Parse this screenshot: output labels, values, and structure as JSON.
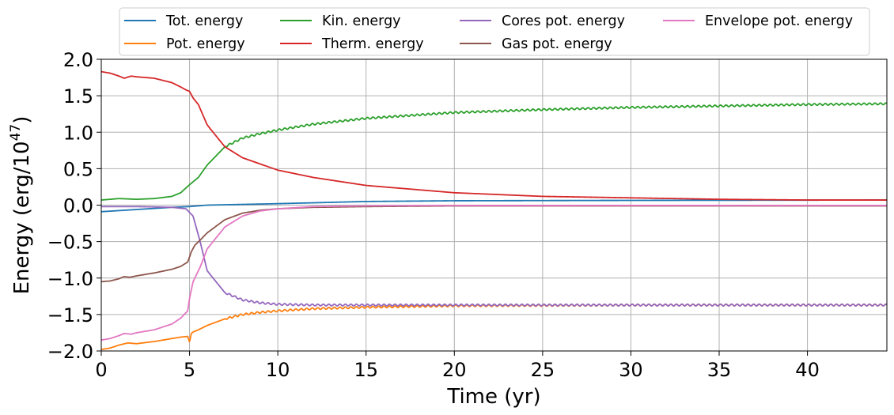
{
  "chart_data": {
    "type": "line",
    "title": "",
    "xlabel": "Time (yr)",
    "ylabel_prefix": "Energy (erg/10",
    "ylabel_exponent": "47",
    "ylabel_suffix": ")",
    "xlim": [
      0,
      44.5
    ],
    "ylim": [
      -2.0,
      2.0
    ],
    "grid": true,
    "legend_position": "top-center, above plot",
    "x_ticks": [
      0,
      5,
      10,
      15,
      20,
      25,
      30,
      35,
      40
    ],
    "x_tick_labels": [
      "0",
      "5",
      "10",
      "15",
      "20",
      "25",
      "30",
      "35",
      "40"
    ],
    "y_ticks": [
      -2.0,
      -1.5,
      -1.0,
      -0.5,
      0.0,
      0.5,
      1.0,
      1.5,
      2.0
    ],
    "y_tick_labels": [
      "−2.0",
      "−1.5",
      "−1.0",
      "−0.5",
      "0.0",
      "0.5",
      "1.0",
      "1.5",
      "2.0"
    ],
    "series": [
      {
        "name": "Tot. energy",
        "color": "#1f77b4",
        "x": [
          0,
          2,
          4,
          5,
          6,
          8,
          10,
          15,
          20,
          30,
          44.5
        ],
        "y": [
          -0.09,
          -0.06,
          -0.03,
          -0.02,
          0.0,
          0.01,
          0.02,
          0.05,
          0.06,
          0.065,
          0.07
        ],
        "oscillation": 0
      },
      {
        "name": "Pot. energy",
        "color": "#ff7f0e",
        "x": [
          0,
          0.5,
          1,
          1.5,
          2,
          3,
          4,
          4.5,
          4.9,
          5.0,
          5.1,
          5.2,
          5.5,
          6,
          7,
          8,
          9,
          10,
          12,
          15,
          20,
          30,
          44.5
        ],
        "y": [
          -1.98,
          -1.96,
          -1.92,
          -1.89,
          -1.9,
          -1.87,
          -1.83,
          -1.81,
          -1.8,
          -1.88,
          -1.76,
          -1.74,
          -1.71,
          -1.65,
          -1.56,
          -1.5,
          -1.47,
          -1.45,
          -1.42,
          -1.4,
          -1.38,
          -1.37,
          -1.37
        ],
        "oscillation": 0.012
      },
      {
        "name": "Kin. energy",
        "color": "#2ca02c",
        "x": [
          0,
          1,
          2,
          3,
          4,
          4.5,
          5,
          5.5,
          6,
          7,
          8,
          9,
          10,
          12,
          15,
          20,
          25,
          30,
          35,
          40,
          44.5
        ],
        "y": [
          0.07,
          0.09,
          0.08,
          0.09,
          0.12,
          0.17,
          0.28,
          0.38,
          0.55,
          0.8,
          0.92,
          0.98,
          1.03,
          1.11,
          1.19,
          1.27,
          1.31,
          1.34,
          1.36,
          1.38,
          1.39
        ],
        "oscillation": 0.012
      },
      {
        "name": "Therm. energy",
        "color": "#d62728",
        "x": [
          0,
          0.5,
          1,
          1.3,
          1.7,
          2,
          3,
          4,
          4.5,
          4.8,
          5,
          5.2,
          5.5,
          6,
          7,
          8,
          10,
          12,
          15,
          20,
          25,
          30,
          35,
          40,
          44.5
        ],
        "y": [
          1.83,
          1.81,
          1.77,
          1.74,
          1.77,
          1.76,
          1.74,
          1.68,
          1.62,
          1.58,
          1.56,
          1.47,
          1.38,
          1.1,
          0.8,
          0.65,
          0.48,
          0.38,
          0.27,
          0.17,
          0.12,
          0.1,
          0.08,
          0.07,
          0.07
        ],
        "oscillation": 0
      },
      {
        "name": "Cores pot. energy",
        "color": "#9467bd",
        "x": [
          0,
          2,
          4,
          4.8,
          5.2,
          5.6,
          6,
          7,
          8,
          9,
          10,
          12,
          15,
          20,
          30,
          44.5
        ],
        "y": [
          -0.02,
          -0.02,
          -0.03,
          -0.05,
          -0.15,
          -0.5,
          -0.9,
          -1.2,
          -1.3,
          -1.34,
          -1.36,
          -1.37,
          -1.37,
          -1.37,
          -1.37,
          -1.37
        ],
        "oscillation": 0.012
      },
      {
        "name": "Gas pot. energy",
        "color": "#8c564b",
        "x": [
          0,
          0.5,
          1,
          1.3,
          1.6,
          2,
          3,
          4,
          4.5,
          4.9,
          5.1,
          5.3,
          5.6,
          6,
          7,
          8,
          9,
          10,
          12,
          15,
          20,
          30,
          44.5
        ],
        "y": [
          -1.05,
          -1.04,
          -1.01,
          -0.98,
          -0.99,
          -0.97,
          -0.93,
          -0.88,
          -0.84,
          -0.78,
          -0.64,
          -0.55,
          -0.48,
          -0.38,
          -0.2,
          -0.11,
          -0.07,
          -0.05,
          -0.03,
          -0.02,
          -0.01,
          -0.01,
          -0.01
        ],
        "oscillation": 0
      },
      {
        "name": "Envelope pot. energy",
        "color": "#e377c2",
        "x": [
          0,
          0.5,
          1,
          1.3,
          1.7,
          2,
          3,
          4,
          4.5,
          4.9,
          5.0,
          5.2,
          5.6,
          6,
          7,
          8,
          9,
          10,
          12,
          15,
          20,
          30,
          44.5
        ],
        "y": [
          -1.85,
          -1.83,
          -1.79,
          -1.76,
          -1.77,
          -1.75,
          -1.71,
          -1.63,
          -1.55,
          -1.45,
          -1.28,
          -1.05,
          -0.85,
          -0.6,
          -0.3,
          -0.15,
          -0.08,
          -0.05,
          -0.02,
          -0.01,
          -0.005,
          -0.005,
          -0.005
        ],
        "oscillation": 0
      }
    ]
  }
}
